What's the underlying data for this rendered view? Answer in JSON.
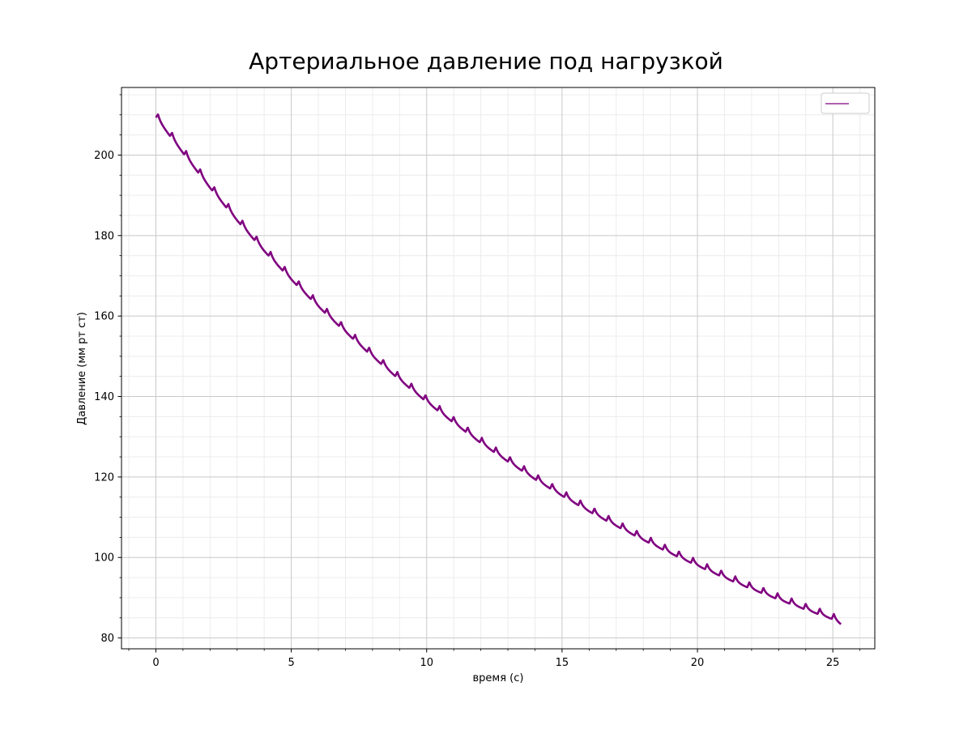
{
  "chart_data": {
    "type": "line",
    "title": "Артериальное давление под нагрузкой",
    "xlabel": "время (с)",
    "ylabel": "Давление (мм рт ст)",
    "xlim": [
      -1.27,
      26.55
    ],
    "ylim": [
      77.3,
      216.8
    ],
    "x_ticks": [
      0,
      5,
      10,
      15,
      20,
      25
    ],
    "y_ticks": [
      80,
      100,
      120,
      140,
      160,
      180,
      200
    ],
    "x_tick_labels": [
      "0",
      "5",
      "10",
      "15",
      "20",
      "25"
    ],
    "y_tick_labels": [
      "80",
      "100",
      "120",
      "140",
      "160",
      "180",
      "200"
    ],
    "x_minor_step": 1,
    "y_minor_step": 5,
    "grid": true,
    "legend": "top-right",
    "series": [
      {
        "color": "#800080",
        "x": [
          0,
          1,
          2,
          3,
          4,
          5,
          6,
          7,
          8,
          9,
          10,
          11,
          12,
          13,
          14,
          15,
          16,
          17,
          18,
          19,
          20,
          21,
          22,
          23,
          24,
          25,
          25.3
        ],
        "y": [
          210,
          201.2,
          192.5,
          184.4,
          176.8,
          169.7,
          163.0,
          156.7,
          150.6,
          144.8,
          139.3,
          134.1,
          129.1,
          124.5,
          120.1,
          116.0,
          112.1,
          108.5,
          105.0,
          101.7,
          98.6,
          95.6,
          92.8,
          90.2,
          87.7,
          85.3,
          84.0
        ],
        "beat_period": 0.52,
        "beat_amplitude": 1.5
      }
    ]
  }
}
